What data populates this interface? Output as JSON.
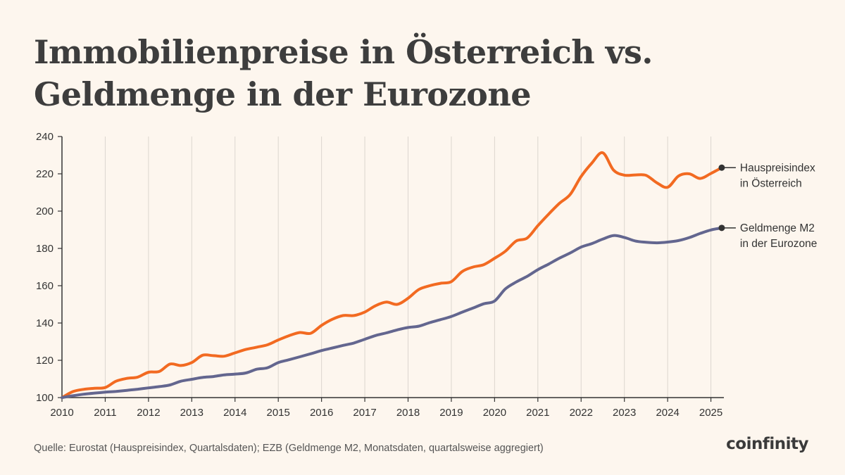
{
  "title": {
    "line1": "Immobilienpreise in Österreich vs.",
    "line2": "Geldmenge in der Eurozone"
  },
  "source": "Quelle: Eurostat (Hauspreisindex, Quartalsdaten); EZB (Geldmenge M2, Monatsdaten, quartalsweise aggregiert)",
  "logo": "coinfinity",
  "colors": {
    "background": "#fdf6ee",
    "house": "#f26a21",
    "m2": "#63668f",
    "grid": "#dcd6cf",
    "axis": "#333333"
  },
  "chart_data": {
    "type": "line",
    "title": "Immobilienpreise in Österreich vs. Geldmenge in der Eurozone",
    "xlabel": "",
    "ylabel": "",
    "xlim": [
      2010,
      2025.3
    ],
    "ylim": [
      100,
      240
    ],
    "x_ticks": [
      2010,
      2011,
      2012,
      2013,
      2014,
      2015,
      2016,
      2017,
      2018,
      2019,
      2020,
      2021,
      2022,
      2023,
      2024,
      2025
    ],
    "y_ticks": [
      100,
      120,
      140,
      160,
      180,
      200,
      220,
      240
    ],
    "grid": "vertical",
    "legend": "right, end-of-line labels",
    "series": [
      {
        "name": "Hauspreisindex in Österreich",
        "label_lines": [
          "Hauspreisindex",
          "in Österreich"
        ],
        "color": "#f26a21",
        "points": [
          [
            2010.0,
            100.0
          ],
          [
            2010.25,
            103.2
          ],
          [
            2010.5,
            104.4
          ],
          [
            2010.75,
            105.0
          ],
          [
            2011.0,
            105.4
          ],
          [
            2011.25,
            108.8
          ],
          [
            2011.5,
            110.3
          ],
          [
            2011.75,
            111.0
          ],
          [
            2012.0,
            113.6
          ],
          [
            2012.25,
            114.0
          ],
          [
            2012.5,
            118.0
          ],
          [
            2012.75,
            117.2
          ],
          [
            2013.0,
            118.8
          ],
          [
            2013.25,
            122.7
          ],
          [
            2013.5,
            122.5
          ],
          [
            2013.75,
            122.2
          ],
          [
            2014.0,
            124.0
          ],
          [
            2014.25,
            125.8
          ],
          [
            2014.5,
            127.0
          ],
          [
            2014.75,
            128.3
          ],
          [
            2015.0,
            130.9
          ],
          [
            2015.25,
            133.2
          ],
          [
            2015.5,
            134.9
          ],
          [
            2015.75,
            134.5
          ],
          [
            2016.0,
            138.7
          ],
          [
            2016.25,
            142.0
          ],
          [
            2016.5,
            144.0
          ],
          [
            2016.75,
            144.0
          ],
          [
            2017.0,
            145.9
          ],
          [
            2017.25,
            149.3
          ],
          [
            2017.5,
            151.2
          ],
          [
            2017.75,
            150.0
          ],
          [
            2018.0,
            153.3
          ],
          [
            2018.25,
            158.0
          ],
          [
            2018.5,
            160.0
          ],
          [
            2018.75,
            161.3
          ],
          [
            2019.0,
            162.2
          ],
          [
            2019.25,
            167.6
          ],
          [
            2019.5,
            170.0
          ],
          [
            2019.75,
            171.3
          ],
          [
            2020.0,
            174.7
          ],
          [
            2020.25,
            178.5
          ],
          [
            2020.5,
            184.0
          ],
          [
            2020.75,
            185.5
          ],
          [
            2021.0,
            192.2
          ],
          [
            2021.25,
            198.4
          ],
          [
            2021.5,
            204.2
          ],
          [
            2021.75,
            209.0
          ],
          [
            2022.0,
            218.6
          ],
          [
            2022.25,
            225.8
          ],
          [
            2022.5,
            231.3
          ],
          [
            2022.75,
            222.0
          ],
          [
            2023.0,
            219.3
          ],
          [
            2023.25,
            219.4
          ],
          [
            2023.5,
            219.2
          ],
          [
            2023.75,
            215.2
          ],
          [
            2024.0,
            212.8
          ],
          [
            2024.25,
            218.8
          ],
          [
            2024.5,
            220.0
          ],
          [
            2024.75,
            217.5
          ],
          [
            2025.0,
            220.2
          ],
          [
            2025.25,
            223.3
          ]
        ]
      },
      {
        "name": "Geldmenge M2 in der Eurozone",
        "label_lines": [
          "Geldmenge M2",
          "in der Eurozone"
        ],
        "color": "#63668f",
        "points": [
          [
            2010.0,
            100.0
          ],
          [
            2010.25,
            101.0
          ],
          [
            2010.5,
            101.8
          ],
          [
            2010.75,
            102.4
          ],
          [
            2011.0,
            102.9
          ],
          [
            2011.25,
            103.3
          ],
          [
            2011.5,
            103.9
          ],
          [
            2011.75,
            104.5
          ],
          [
            2012.0,
            105.2
          ],
          [
            2012.25,
            105.9
          ],
          [
            2012.5,
            106.8
          ],
          [
            2012.75,
            108.8
          ],
          [
            2013.0,
            109.8
          ],
          [
            2013.25,
            110.8
          ],
          [
            2013.5,
            111.3
          ],
          [
            2013.75,
            112.2
          ],
          [
            2014.0,
            112.6
          ],
          [
            2014.25,
            113.2
          ],
          [
            2014.5,
            115.2
          ],
          [
            2014.75,
            116.0
          ],
          [
            2015.0,
            118.8
          ],
          [
            2015.25,
            120.3
          ],
          [
            2015.5,
            121.9
          ],
          [
            2015.75,
            123.5
          ],
          [
            2016.0,
            125.2
          ],
          [
            2016.25,
            126.6
          ],
          [
            2016.5,
            128.0
          ],
          [
            2016.75,
            129.3
          ],
          [
            2017.0,
            131.3
          ],
          [
            2017.25,
            133.3
          ],
          [
            2017.5,
            134.7
          ],
          [
            2017.75,
            136.3
          ],
          [
            2018.0,
            137.6
          ],
          [
            2018.25,
            138.3
          ],
          [
            2018.5,
            140.2
          ],
          [
            2018.75,
            141.8
          ],
          [
            2019.0,
            143.5
          ],
          [
            2019.25,
            145.8
          ],
          [
            2019.5,
            148.0
          ],
          [
            2019.75,
            150.3
          ],
          [
            2020.0,
            151.8
          ],
          [
            2020.25,
            158.3
          ],
          [
            2020.5,
            162.0
          ],
          [
            2020.75,
            165.0
          ],
          [
            2021.0,
            168.6
          ],
          [
            2021.25,
            171.6
          ],
          [
            2021.5,
            174.8
          ],
          [
            2021.75,
            177.6
          ],
          [
            2022.0,
            180.7
          ],
          [
            2022.25,
            182.6
          ],
          [
            2022.5,
            185.0
          ],
          [
            2022.75,
            186.9
          ],
          [
            2023.0,
            185.9
          ],
          [
            2023.25,
            184.0
          ],
          [
            2023.5,
            183.3
          ],
          [
            2023.75,
            183.0
          ],
          [
            2024.0,
            183.4
          ],
          [
            2024.25,
            184.2
          ],
          [
            2024.5,
            185.8
          ],
          [
            2024.75,
            188.0
          ],
          [
            2025.0,
            189.9
          ],
          [
            2025.25,
            191.0
          ]
        ]
      }
    ]
  }
}
